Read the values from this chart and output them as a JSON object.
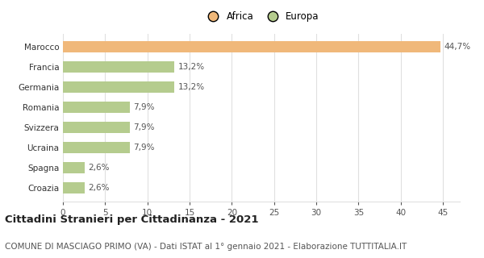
{
  "categories": [
    "Croazia",
    "Spagna",
    "Ucraina",
    "Svizzera",
    "Romania",
    "Germania",
    "Francia",
    "Marocco"
  ],
  "values": [
    2.6,
    2.6,
    7.9,
    7.9,
    7.9,
    13.2,
    13.2,
    44.7
  ],
  "colors": [
    "#b5cc8e",
    "#b5cc8e",
    "#b5cc8e",
    "#b5cc8e",
    "#b5cc8e",
    "#b5cc8e",
    "#b5cc8e",
    "#f0b87a"
  ],
  "labels": [
    "2,6%",
    "2,6%",
    "7,9%",
    "7,9%",
    "7,9%",
    "13,2%",
    "13,2%",
    "44,7%"
  ],
  "legend": [
    {
      "label": "Africa",
      "color": "#f0b87a"
    },
    {
      "label": "Europa",
      "color": "#b5cc8e"
    }
  ],
  "xlim": [
    0,
    47
  ],
  "xticks": [
    0,
    5,
    10,
    15,
    20,
    25,
    30,
    35,
    40,
    45
  ],
  "title": "Cittadini Stranieri per Cittadinanza - 2021",
  "subtitle": "COMUNE DI MASCIAGO PRIMO (VA) - Dati ISTAT al 1° gennaio 2021 - Elaborazione TUTTITALIA.IT",
  "title_fontsize": 9.5,
  "subtitle_fontsize": 7.5,
  "label_fontsize": 7.5,
  "tick_fontsize": 7.5,
  "bar_height": 0.55,
  "bg_color": "#ffffff",
  "grid_color": "#e0e0e0"
}
